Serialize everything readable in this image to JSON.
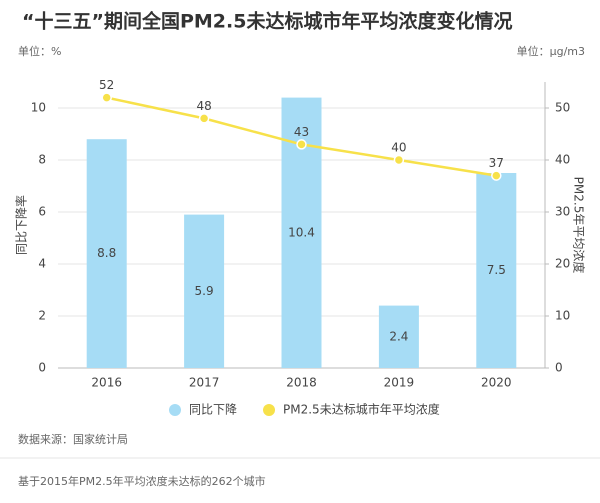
{
  "chart_data": {
    "type": "bar-line",
    "title": "“十三五”期间全国PM2.5未达标城市年平均浓度变化情况",
    "y_unit": "单位：%",
    "y2_unit": "单位：μg/m3",
    "y_label": "同比下降率",
    "y2_label": "PM2.5年平均浓度",
    "categories": [
      "2016",
      "2017",
      "2018",
      "2019",
      "2020"
    ],
    "series": [
      {
        "name": "同比下降",
        "type": "bar",
        "color": "#a6dcf5",
        "values": [
          8.8,
          5.9,
          10.4,
          2.4,
          7.5
        ]
      },
      {
        "name": "PM2.5未达标城市年平均浓度",
        "type": "line",
        "axis": "y2",
        "color": "#f7e14a",
        "values": [
          52,
          48,
          43,
          40,
          37
        ]
      }
    ],
    "ylim": [
      0,
      11
    ],
    "yticks": [
      0,
      2,
      4,
      6,
      8,
      10
    ],
    "y2lim": [
      0,
      55
    ],
    "y2ticks": [
      0,
      10,
      20,
      30,
      40,
      50
    ],
    "grid": true,
    "source": "数据来源：国家统计局",
    "note": "基于2015年PM2.5年平均浓度未达标的262个城市"
  }
}
